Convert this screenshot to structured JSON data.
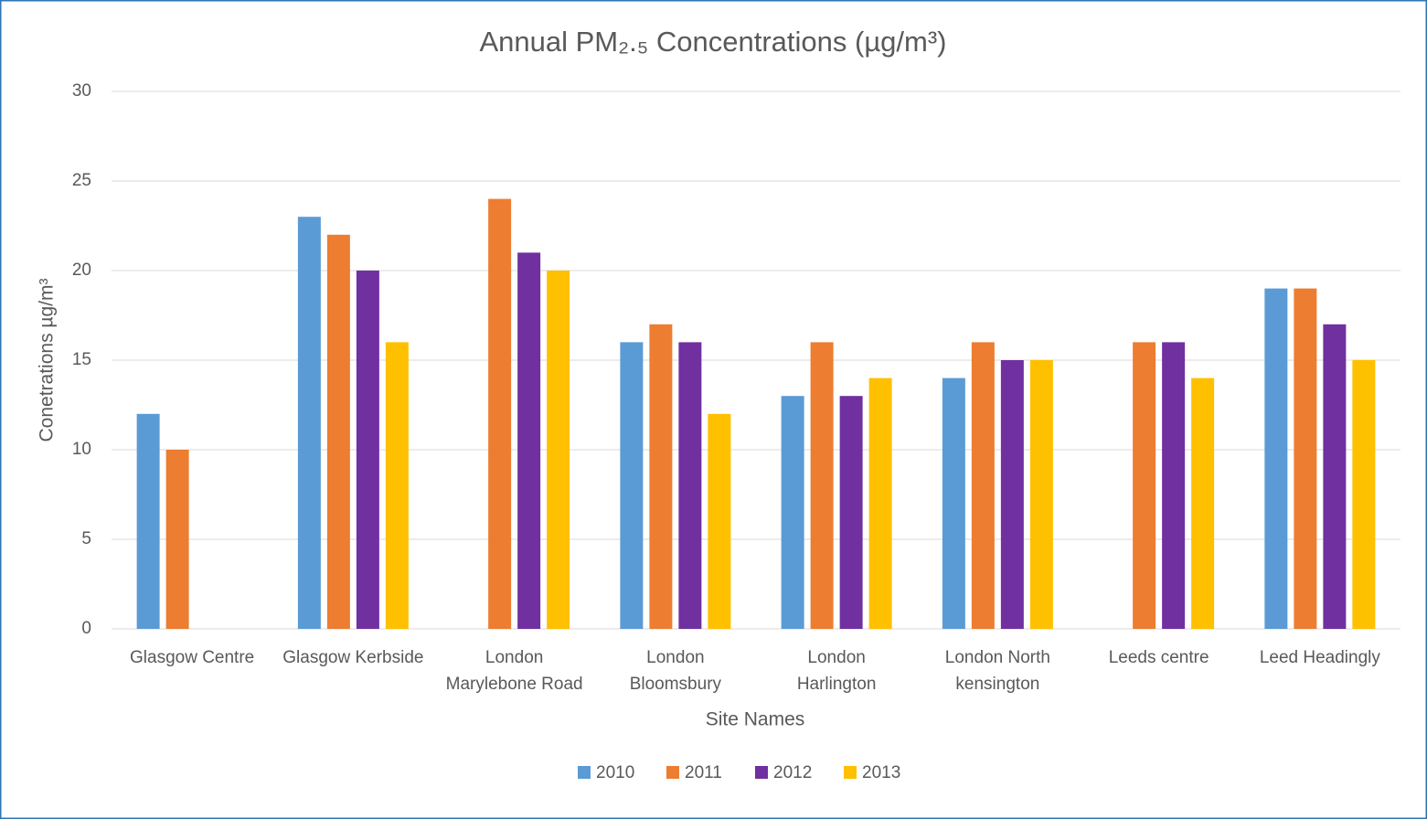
{
  "chart_data": {
    "type": "bar",
    "title": "Annual PM₂.₅ Concentrations (µg/m³)",
    "x_label": "Site Names",
    "y_label": "Conetrations µg/m³",
    "categories": [
      [
        "Glasgow Centre"
      ],
      [
        "Glasgow Kerbside"
      ],
      [
        "London",
        "Marylebone Road"
      ],
      [
        "London",
        "Bloomsbury"
      ],
      [
        "London",
        "Harlington"
      ],
      [
        "London North",
        "kensington"
      ],
      [
        "Leeds centre"
      ],
      [
        "Leed Headingly"
      ]
    ],
    "series": [
      {
        "name": "2010",
        "color": "#5b9bd5",
        "values": [
          12,
          23,
          null,
          16,
          13,
          14,
          null,
          19
        ]
      },
      {
        "name": "2011",
        "color": "#ed7d31",
        "values": [
          10,
          22,
          24,
          17,
          16,
          16,
          16,
          19
        ]
      },
      {
        "name": "2012",
        "color": "#7030a0",
        "values": [
          null,
          20,
          21,
          16,
          13,
          15,
          16,
          17
        ]
      },
      {
        "name": "2013",
        "color": "#ffc000",
        "values": [
          null,
          16,
          20,
          12,
          14,
          15,
          14,
          15
        ]
      }
    ],
    "ylim": [
      0,
      30
    ],
    "yticks": [
      0,
      5,
      10,
      15,
      20,
      25,
      30
    ],
    "grid": true,
    "legend": "bottom"
  }
}
